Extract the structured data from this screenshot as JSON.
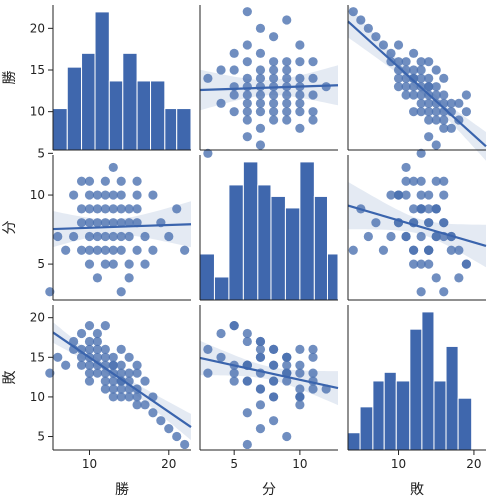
{
  "chart_data": {
    "type": "pairplot",
    "variables": [
      "勝",
      "分",
      "敗"
    ],
    "axis_ranges": {
      "勝": [
        5.4,
        22.8
      ],
      "分": [
        2.4,
        12.9
      ],
      "敗": [
        3.3,
        21.6
      ]
    },
    "ticks": {
      "勝": [
        5,
        10,
        15,
        20
      ],
      "分": [
        5,
        10
      ],
      "敗": [
        5,
        10,
        15,
        20
      ]
    },
    "x_ticks": {
      "勝": [
        10,
        20
      ],
      "分": [
        5,
        10
      ],
      "敗": [
        10,
        20
      ]
    },
    "observations": {
      "勝": [
        5,
        6,
        7,
        8,
        8,
        9,
        9,
        9,
        9,
        10,
        10,
        10,
        10,
        10,
        10,
        10,
        11,
        11,
        11,
        11,
        11,
        11,
        12,
        12,
        12,
        12,
        12,
        12,
        12,
        13,
        13,
        13,
        13,
        13,
        13,
        13,
        14,
        14,
        14,
        14,
        14,
        14,
        14,
        15,
        15,
        15,
        15,
        15,
        16,
        16,
        16,
        16,
        16,
        17,
        17,
        18,
        18,
        19,
        20,
        21,
        22
      ],
      "分": [
        3,
        7,
        6,
        10,
        7,
        9,
        11,
        8,
        6,
        7,
        5,
        10,
        8,
        9,
        11,
        6,
        4,
        8,
        9,
        10,
        7,
        6,
        5,
        11,
        8,
        7,
        6,
        9,
        10,
        5,
        7,
        8,
        9,
        10,
        6,
        12,
        3,
        8,
        9,
        7,
        6,
        10,
        11,
        5,
        4,
        7,
        8,
        9,
        10,
        6,
        11,
        8,
        9,
        5,
        7,
        6,
        10,
        8,
        7,
        9,
        6
      ],
      "敗": [
        13,
        15,
        14,
        16,
        17,
        15,
        16,
        14,
        18,
        17,
        19,
        14,
        16,
        13,
        15,
        12,
        18,
        16,
        14,
        13,
        15,
        17,
        19,
        13,
        14,
        16,
        12,
        15,
        11,
        14,
        13,
        12,
        15,
        10,
        14,
        11,
        16,
        12,
        13,
        11,
        14,
        10,
        12,
        13,
        15,
        11,
        10,
        12,
        9,
        14,
        11,
        10,
        13,
        12,
        9,
        8,
        10,
        7,
        6,
        5,
        4
      ]
    },
    "histograms": {
      "勝": {
        "edges": [
          5.4,
          7.2,
          9.0,
          10.7,
          12.5,
          14.2,
          16.0,
          17.7,
          19.5,
          21.0,
          22.8
        ],
        "heights": [
          3,
          6,
          7,
          10,
          5,
          7,
          5,
          5,
          3,
          3
        ]
      },
      "分": {
        "edges": [
          2.4,
          3.5,
          4.6,
          5.7,
          6.8,
          7.8,
          8.9,
          10.0,
          11.1,
          12.1,
          12.9
        ],
        "heights": [
          4,
          2,
          10,
          12,
          10,
          9,
          8,
          12,
          9,
          4
        ]
      },
      "敗": {
        "edges": [
          3.3,
          4.9,
          6.6,
          8.1,
          9.7,
          11.5,
          13.1,
          14.7,
          16.3,
          17.9,
          19.7
        ],
        "heights": [
          2,
          5,
          8,
          9,
          8,
          14,
          16,
          8,
          12,
          6
        ]
      }
    },
    "regression": "linear fit with confidence band",
    "grid": false,
    "legend": "none",
    "colors": {
      "points": "#4c72b0",
      "line": "#3a64ad",
      "band": "#4c72b0",
      "bars": "#3f67ad"
    }
  }
}
